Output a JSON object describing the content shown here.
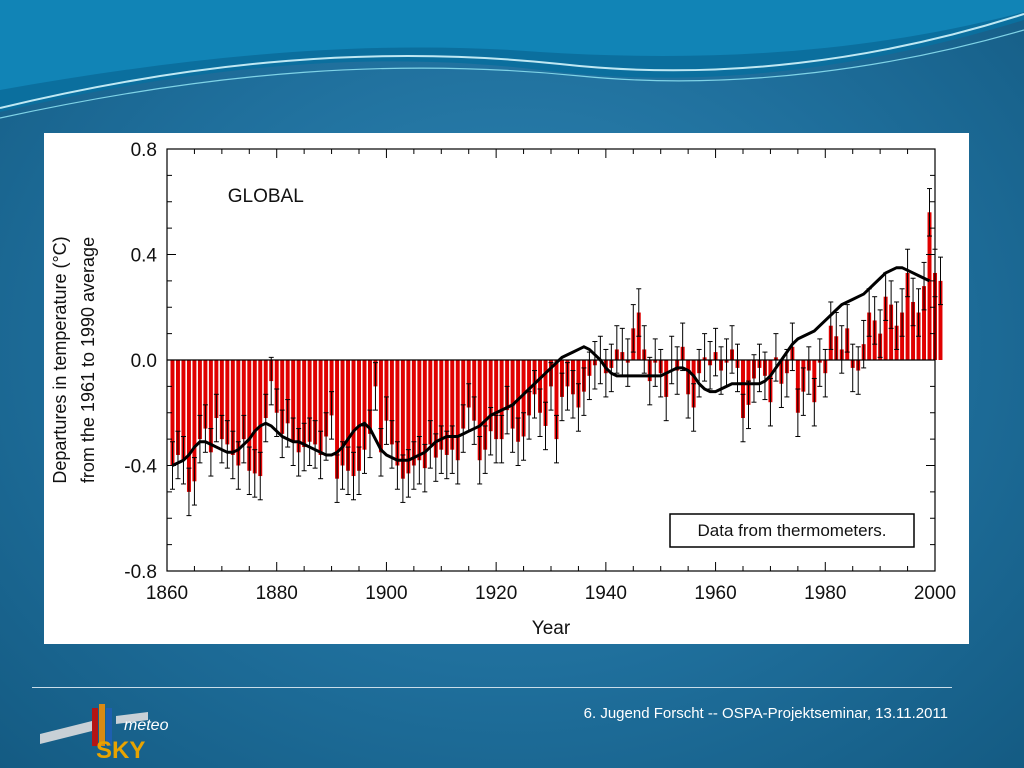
{
  "footer": {
    "text": "6. Jugend Forscht -- OSPA-Projektseminar, 13.11.2011"
  },
  "logo": {
    "word_top": "meteo",
    "word_bottom": "SKY"
  },
  "colors": {
    "bar": "#e00000",
    "smooth": "#000000",
    "panel": "#ffffff",
    "background": "#1f6f9c"
  },
  "chart_data": {
    "type": "bar",
    "panel_label": "GLOBAL",
    "note": "Data from thermometers.",
    "xlabel": "Year",
    "ylabel": [
      "Departures in temperature (°C)",
      "from the 1961 to 1990 average"
    ],
    "xlim": [
      1860,
      2000
    ],
    "ylim": [
      -0.8,
      0.8
    ],
    "x_ticks": [
      1860,
      1880,
      1900,
      1920,
      1940,
      1960,
      1980,
      2000
    ],
    "y_ticks": [
      -0.8,
      -0.4,
      0.0,
      0.4,
      0.8
    ],
    "y_tick_labels": [
      "-0.8",
      "-0.4",
      "0.0",
      "0.4",
      "0.8"
    ],
    "grid": false,
    "series": [
      {
        "values": [
          -0.4,
          -0.36,
          -0.38,
          -0.5,
          -0.46,
          -0.3,
          -0.26,
          -0.35,
          -0.22,
          -0.3,
          -0.32,
          -0.36,
          -0.4,
          -0.3,
          -0.42,
          -0.43,
          -0.44,
          -0.22,
          -0.08,
          -0.2,
          -0.28,
          -0.24,
          -0.31,
          -0.35,
          -0.33,
          -0.31,
          -0.32,
          -0.36,
          -0.29,
          -0.21,
          -0.45,
          -0.4,
          -0.42,
          -0.44,
          -0.42,
          -0.34,
          -0.28,
          -0.1,
          -0.35,
          -0.23,
          -0.32,
          -0.4,
          -0.45,
          -0.43,
          -0.4,
          -0.38,
          -0.41,
          -0.32,
          -0.37,
          -0.34,
          -0.36,
          -0.34,
          -0.38,
          -0.26,
          -0.18,
          -0.23,
          -0.38,
          -0.34,
          -0.27,
          -0.3,
          -0.3,
          -0.19,
          -0.26,
          -0.31,
          -0.29,
          -0.21,
          -0.13,
          -0.2,
          -0.25,
          -0.1,
          -0.3,
          -0.14,
          -0.1,
          -0.13,
          -0.18,
          -0.12,
          -0.06,
          -0.02,
          0.0,
          -0.05,
          -0.03,
          0.04,
          0.03,
          -0.01,
          0.12,
          0.18,
          0.04,
          -0.08,
          -0.01,
          -0.05,
          -0.14,
          0.0,
          -0.04,
          0.05,
          -0.13,
          -0.18,
          -0.05,
          0.01,
          -0.02,
          0.03,
          -0.04,
          -0.01,
          0.04,
          -0.03,
          -0.22,
          -0.17,
          -0.07,
          -0.03,
          -0.06,
          -0.16,
          0.01,
          -0.09,
          -0.05,
          0.05,
          -0.2,
          -0.12,
          -0.04,
          -0.16,
          -0.01,
          -0.05,
          0.13,
          0.09,
          0.04,
          0.12,
          -0.03,
          -0.04,
          0.06,
          0.18,
          0.15,
          0.1,
          0.24,
          0.21,
          0.13,
          0.18,
          0.33,
          0.22,
          0.18,
          0.28,
          0.56,
          0.33,
          0.3
        ],
        "smoothed": [
          -0.4,
          -0.39,
          -0.38,
          -0.36,
          -0.33,
          -0.31,
          -0.31,
          -0.32,
          -0.33,
          -0.34,
          -0.35,
          -0.35,
          -0.34,
          -0.32,
          -0.3,
          -0.27,
          -0.25,
          -0.24,
          -0.25,
          -0.27,
          -0.29,
          -0.3,
          -0.31,
          -0.31,
          -0.32,
          -0.33,
          -0.34,
          -0.35,
          -0.36,
          -0.36,
          -0.35,
          -0.33,
          -0.3,
          -0.27,
          -0.25,
          -0.24,
          -0.26,
          -0.3,
          -0.34,
          -0.36,
          -0.37,
          -0.38,
          -0.38,
          -0.38,
          -0.37,
          -0.36,
          -0.35,
          -0.33,
          -0.31,
          -0.3,
          -0.29,
          -0.29,
          -0.29,
          -0.28,
          -0.27,
          -0.26,
          -0.25,
          -0.23,
          -0.21,
          -0.2,
          -0.19,
          -0.18,
          -0.17,
          -0.15,
          -0.13,
          -0.11,
          -0.09,
          -0.07,
          -0.05,
          -0.03,
          -0.01,
          0.01,
          0.02,
          0.03,
          0.04,
          0.05,
          0.04,
          0.02,
          0.0,
          -0.03,
          -0.05,
          -0.06,
          -0.06,
          -0.06,
          -0.06,
          -0.06,
          -0.06,
          -0.06,
          -0.06,
          -0.06,
          -0.05,
          -0.04,
          -0.03,
          -0.03,
          -0.04,
          -0.06,
          -0.09,
          -0.11,
          -0.12,
          -0.12,
          -0.11,
          -0.1,
          -0.09,
          -0.09,
          -0.09,
          -0.09,
          -0.09,
          -0.09,
          -0.08,
          -0.06,
          -0.03,
          0.0,
          0.03,
          0.06,
          0.08,
          0.09,
          0.1,
          0.11,
          0.13,
          0.15,
          0.17,
          0.19,
          0.21,
          0.22,
          0.23,
          0.24,
          0.25,
          0.27,
          0.29,
          0.31,
          0.33,
          0.34,
          0.35,
          0.35,
          0.34,
          0.33,
          0.32,
          0.31,
          0.3
        ],
        "error_bar_half_width": 0.09
      }
    ],
    "start_year": 1861
  }
}
